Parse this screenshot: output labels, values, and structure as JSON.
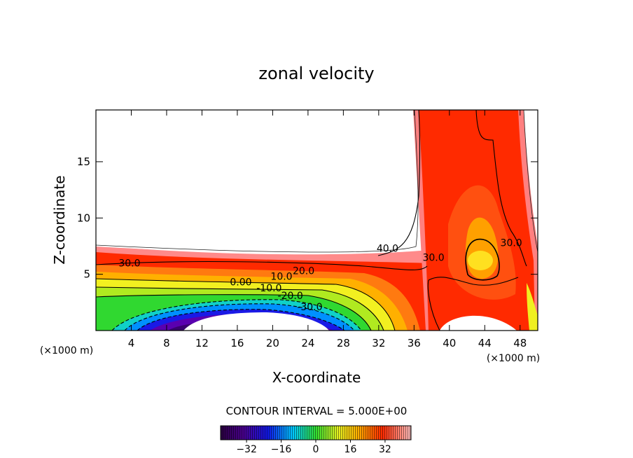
{
  "chart_data": {
    "type": "contour",
    "title": "zonal velocity",
    "xlabel": "X-coordinate",
    "ylabel": "Z-coordinate",
    "x_unit": "(×1000 m)",
    "xlim": [
      0,
      50
    ],
    "ylim": [
      0,
      19.6
    ],
    "x_ticks": [
      4,
      8,
      12,
      16,
      20,
      24,
      28,
      32,
      36,
      40,
      44,
      48
    ],
    "y_ticks": [
      5,
      10,
      15
    ],
    "contour_interval_text": "CONTOUR INTERVAL = 5.000E+00",
    "contour_labels": [
      {
        "text": "40.0",
        "x": 33.0,
        "z": 7.0
      },
      {
        "text": "30.0",
        "x": 3.8,
        "z": 5.7
      },
      {
        "text": "20.0",
        "x": 23.5,
        "z": 5.0
      },
      {
        "text": "10.0",
        "x": 21.0,
        "z": 4.5
      },
      {
        "text": "0.00",
        "x": 16.4,
        "z": 4.0
      },
      {
        "text": "-10.0",
        "x": 19.6,
        "z": 3.5
      },
      {
        "text": "-20.0",
        "x": 22.0,
        "z": 2.8
      },
      {
        "text": "-30.0",
        "x": 24.2,
        "z": 1.8
      },
      {
        "text": "30.0",
        "x": 38.2,
        "z": 6.2
      },
      {
        "text": "30.0",
        "x": 47.0,
        "z": 7.5
      }
    ],
    "colorbar": {
      "min": -44,
      "max": 44,
      "tick_values": [
        -32,
        -16,
        0,
        16,
        32
      ],
      "tick_labels": [
        "−32",
        "−16",
        "0",
        "16",
        "32"
      ]
    },
    "colors": {
      "max_positive": "#ff9a9a",
      "strong_positive": "#ff2a00",
      "moderate_positive": "#ff6a10",
      "weak_positive": "#ffe020",
      "zero": "#40dd30",
      "weak_negative": "#00c8ff",
      "strong_negative": "#1010e0",
      "min_negative": "#5a0078"
    }
  }
}
